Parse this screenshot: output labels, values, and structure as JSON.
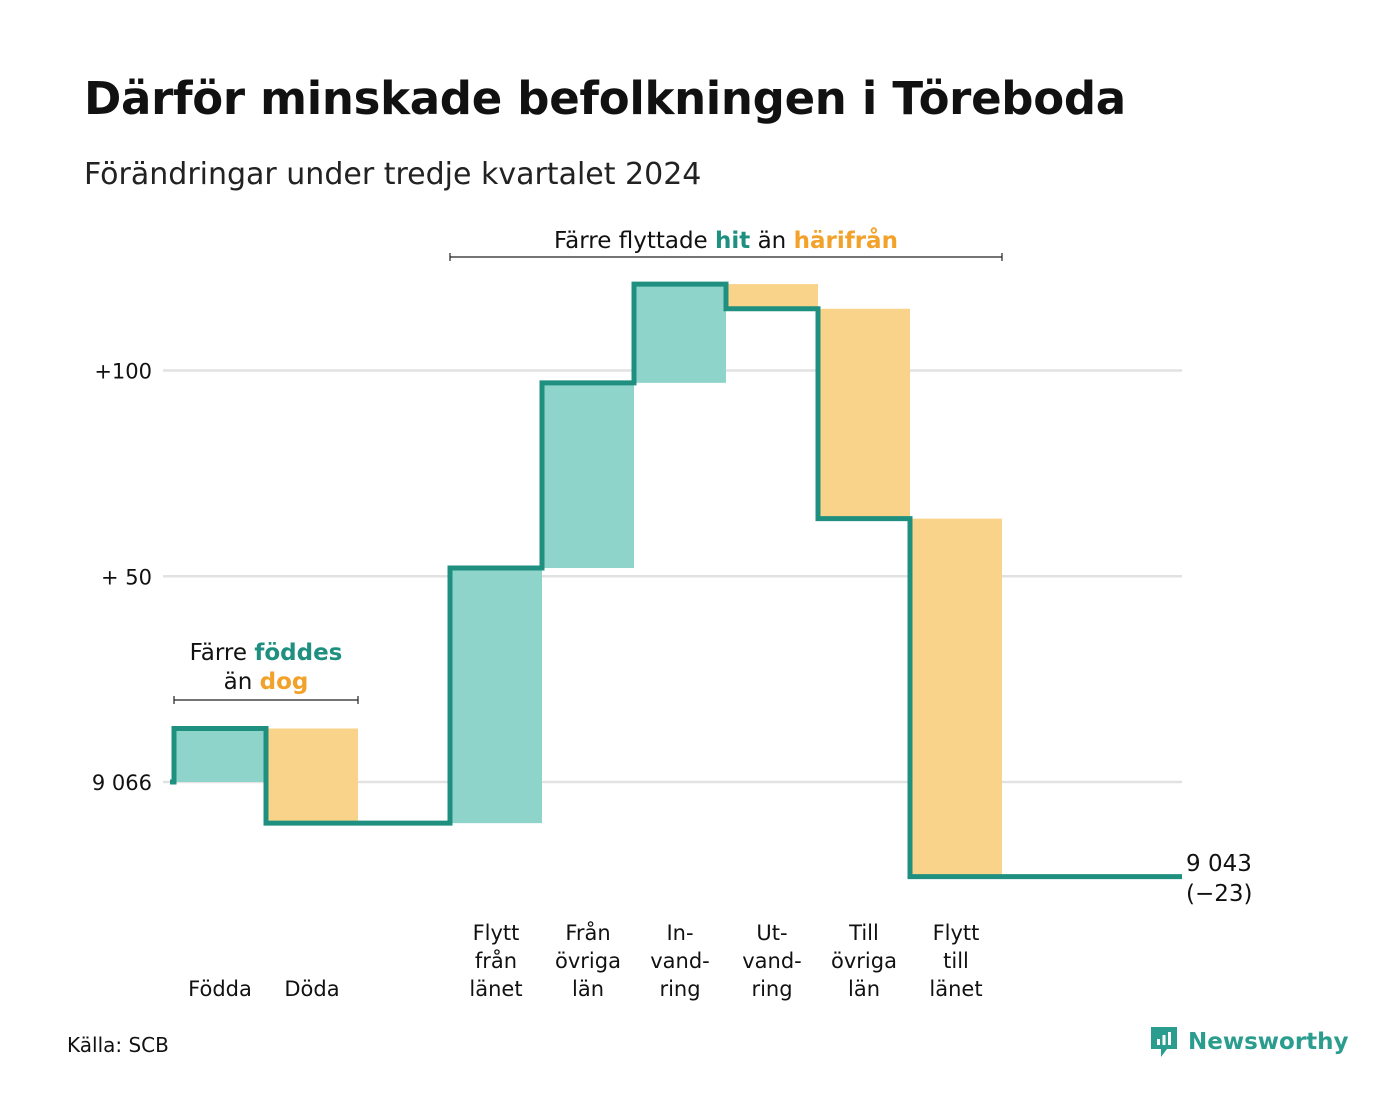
{
  "title": "Därför minskade befolkningen i Töreboda",
  "subtitle": "Förändringar under tredje kvartalet 2024",
  "source": "Källa: SCB",
  "brand": "Newsworthy",
  "colors": {
    "line": "#1f9080",
    "in_fill": "#8ed4cb",
    "out_fill": "#fad38a",
    "in_text": "#1f9080",
    "out_text": "#f2a22a",
    "grid": "#e2e2e2"
  },
  "chart_data": {
    "type": "waterfall",
    "title": "Därför minskade befolkningen i Töreboda",
    "subtitle": "Förändringar under tredje kvartalet 2024",
    "start_value": 9066,
    "end_value": 9043,
    "net_change": -23,
    "ylim": [
      -23,
      121
    ],
    "y_ticks": [
      {
        "value": 0,
        "label": "9 066"
      },
      {
        "value": 50,
        "label": "+ 50"
      },
      {
        "value": 100,
        "label": "+100"
      }
    ],
    "steps": [
      {
        "label": [
          "Födda"
        ],
        "value": 13,
        "kind": "in"
      },
      {
        "label": [
          "Döda"
        ],
        "value": -23,
        "kind": "out"
      },
      {
        "label": [],
        "value": 0,
        "kind": "gap"
      },
      {
        "label": [
          "Flytt",
          "från",
          "länet"
        ],
        "value": 62,
        "kind": "in"
      },
      {
        "label": [
          "Från",
          "övriga",
          "län"
        ],
        "value": 45,
        "kind": "in"
      },
      {
        "label": [
          "In-",
          "vand-",
          "ring"
        ],
        "value": 24,
        "kind": "in"
      },
      {
        "label": [
          "Ut-",
          "vand-",
          "ring"
        ],
        "value": -6,
        "kind": "out"
      },
      {
        "label": [
          "Till",
          "övriga",
          "län"
        ],
        "value": -51,
        "kind": "out"
      },
      {
        "label": [
          "Flytt",
          "till",
          "länet"
        ],
        "value": -87,
        "kind": "out"
      }
    ],
    "end_label": [
      "9 043",
      "(−23)"
    ],
    "annotations": [
      {
        "lines": [
          [
            {
              "text": "Färre ",
              "style": "plain"
            },
            {
              "text": "föddes",
              "style": "in"
            }
          ],
          [
            {
              "text": "än ",
              "style": "plain"
            },
            {
              "text": "dog",
              "style": "out"
            }
          ]
        ],
        "spans_steps": [
          0,
          1
        ]
      },
      {
        "lines": [
          [
            {
              "text": "Färre flyttade ",
              "style": "plain"
            },
            {
              "text": "hit",
              "style": "in"
            },
            {
              "text": "  än ",
              "style": "plain"
            },
            {
              "text": "härifrån",
              "style": "out"
            }
          ]
        ],
        "spans_steps": [
          3,
          8
        ]
      }
    ]
  }
}
